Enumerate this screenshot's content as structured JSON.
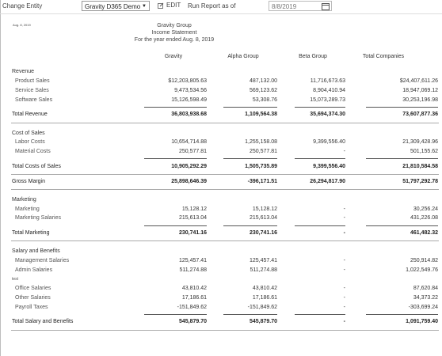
{
  "toolbar": {
    "change_entity": "Change Entity",
    "entity_value": "Gravity D365 Demo",
    "edit_label": "EDIT",
    "run_label": "Run Report as of",
    "date_value": "8/8/2019"
  },
  "report": {
    "small_date": "Aug. 8, 2019",
    "title": "Gravity Group",
    "subtitle": "Income Statement",
    "period": "For the year ended Aug. 8, 2019",
    "columns": [
      "Gravity",
      "Alpha Group",
      "Beta Group",
      "Total Companies"
    ]
  },
  "rows": {
    "revenue": {
      "label": "Revenue"
    },
    "product_sales": {
      "label": "Product Sales",
      "v": [
        "$12,203,805.63",
        "487,132.00",
        "11,716,673.63",
        "$24,407,611.26"
      ]
    },
    "service_sales": {
      "label": "Service Sales",
      "v": [
        "9,473,534.56",
        "569,123.62",
        "8,904,410.94",
        "18,947,069.12"
      ]
    },
    "software_sales": {
      "label": "Software Sales",
      "v": [
        "15,126,598.49",
        "53,308.76",
        "15,073,289.73",
        "30,253,196.98"
      ]
    },
    "total_revenue": {
      "label": "Total Revenue",
      "v": [
        "36,803,938.68",
        "1,109,564.38",
        "35,694,374.30",
        "73,607,877.36"
      ]
    },
    "cost_of_sales": {
      "label": "Cost of Sales"
    },
    "labor_costs": {
      "label": "Labor Costs",
      "v": [
        "10,654,714.88",
        "1,255,158.08",
        "9,399,556.40",
        "21,309,428.96"
      ]
    },
    "material_costs": {
      "label": "Material Costs",
      "v": [
        "250,577.81",
        "250,577.81",
        "-",
        "501,155.62"
      ]
    },
    "total_costs": {
      "label": "Total Costs of Sales",
      "v": [
        "10,905,292.29",
        "1,505,735.89",
        "9,399,556.40",
        "21,810,584.58"
      ]
    },
    "gross_margin": {
      "label": "Gross Margin",
      "v": [
        "25,898,646.39",
        "-396,171.51",
        "26,294,817.90",
        "51,797,292.78"
      ]
    },
    "marketing": {
      "label": "Marketing"
    },
    "marketing_item": {
      "label": "Marketing",
      "v": [
        "15,128.12",
        "15,128.12",
        "-",
        "30,256.24"
      ]
    },
    "marketing_salaries": {
      "label": "Marketing Salaries",
      "v": [
        "215,613.04",
        "215,613.04",
        "-",
        "431,226.08"
      ]
    },
    "total_marketing": {
      "label": "Total Marketing",
      "v": [
        "230,741.16",
        "230,741.16",
        "-",
        "461,482.32"
      ]
    },
    "salary_benefits": {
      "label": "Salary and Benefits"
    },
    "mgmt_salaries": {
      "label": "Management Salaries",
      "v": [
        "125,457.41",
        "125,457.41",
        "-",
        "250,914.82"
      ]
    },
    "admin_salaries": {
      "label": "Admin Salaries",
      "v": [
        "511,274.88",
        "511,274.88",
        "-",
        "1,022,549.76"
      ]
    },
    "test": {
      "label": "test"
    },
    "office_salaries": {
      "label": "Office Salaries",
      "v": [
        "43,810.42",
        "43,810.42",
        "-",
        "87,620.84"
      ]
    },
    "other_salaries": {
      "label": "Other Salaries",
      "v": [
        "17,186.61",
        "17,186.61",
        "-",
        "34,373.22"
      ]
    },
    "payroll_taxes": {
      "label": "Payroll Taxes",
      "v": [
        "-151,849.62",
        "-151,849.62",
        "-",
        "-303,699.24"
      ]
    },
    "total_salary": {
      "label": "Total Salary and Benefits",
      "v": [
        "545,879.70",
        "545,879.70",
        "-",
        "1,091,759.40"
      ]
    }
  }
}
